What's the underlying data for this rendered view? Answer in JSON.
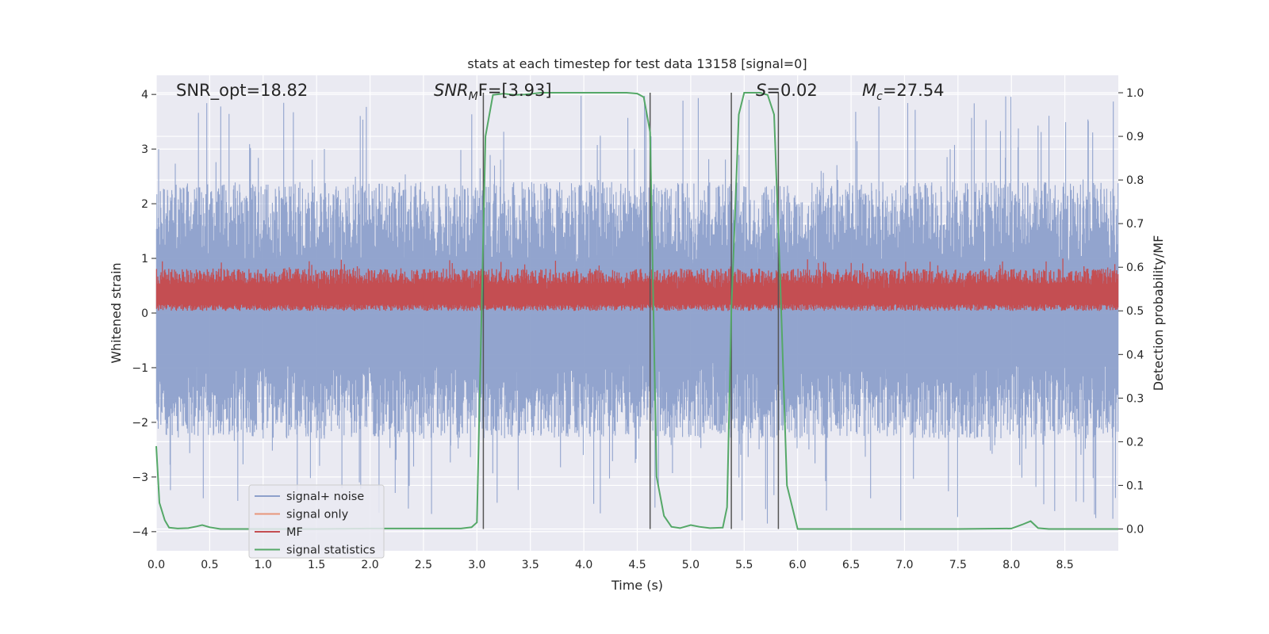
{
  "chart_data": {
    "type": "line",
    "title": "stats at each timestep for test data 13158 [signal=0]",
    "xlabel": "Time (s)",
    "ylabel": "Whitened strain",
    "y2label": "Detection probability/MF",
    "xlim": [
      0,
      9.0
    ],
    "ylim": [
      -4.35,
      4.35
    ],
    "y2lim": [
      -0.05,
      1.04
    ],
    "xticks": [
      0.0,
      0.5,
      1.0,
      1.5,
      2.0,
      2.5,
      3.0,
      3.5,
      4.0,
      4.5,
      5.0,
      5.5,
      6.0,
      6.5,
      7.0,
      7.5,
      8.0,
      8.5
    ],
    "xtick_labels": [
      "0.0",
      "0.5",
      "1.0",
      "1.5",
      "2.0",
      "2.5",
      "3.0",
      "3.5",
      "4.0",
      "4.5",
      "5.0",
      "5.5",
      "6.0",
      "6.5",
      "7.0",
      "7.5",
      "8.0",
      "8.5"
    ],
    "yticks": [
      4,
      3,
      2,
      1,
      0,
      -1,
      -2,
      -3,
      -4
    ],
    "ytick_labels": [
      "4",
      "3",
      "2",
      "1",
      "0",
      "−1",
      "−2",
      "−3",
      "−4"
    ],
    "y2ticks": [
      1.0,
      0.9,
      0.8,
      0.7,
      0.6,
      0.5,
      0.4,
      0.3,
      0.2,
      0.1,
      0.0
    ],
    "y2tick_labels": [
      "1.0",
      "0.9",
      "0.8",
      "0.7",
      "0.6",
      "0.5",
      "0.4",
      "0.3",
      "0.2",
      "0.1",
      "0.0"
    ],
    "grid": true,
    "annotations": {
      "snr_opt": "SNR_opt=18.82",
      "snr_mf_base": "SNR",
      "snr_mf_sub": "M",
      "snr_mf_rest": "F=[3.93]",
      "s_var": "S",
      "s_rest": "=0.02",
      "mc_var": "M",
      "mc_sub": "c",
      "mc_rest": "=27.54"
    },
    "vlines_x": [
      3.06,
      4.62,
      5.38,
      5.82
    ],
    "series": [
      {
        "name": "signal+ noise",
        "color": "#8da0cb",
        "description": "noisy whitened strain, roughly -3.8 to 4.0, centered near 0",
        "envelope": {
          "mean": 0.0,
          "typical_max": 2.4,
          "typical_min": -2.3,
          "peak_max": 4.0,
          "peak_min": -3.9
        }
      },
      {
        "name": "signal only",
        "color": "#e8967a",
        "values": []
      },
      {
        "name": "MF",
        "color": "#c44e52",
        "description": "matched filter output on right axis, fluctuating between ~0.5 and ~0.62",
        "envelope": {
          "mean_y2": 0.55,
          "min_y2": 0.5,
          "max_y2": 0.62
        }
      },
      {
        "name": "signal statistics",
        "color": "#55a868",
        "x": [
          0.0,
          0.03,
          0.08,
          0.12,
          0.2,
          0.3,
          0.38,
          0.43,
          0.5,
          0.6,
          1.0,
          1.5,
          2.0,
          2.5,
          2.85,
          2.95,
          3.0,
          3.03,
          3.08,
          3.15,
          3.25,
          3.35,
          3.45,
          3.6,
          4.0,
          4.4,
          4.5,
          4.56,
          4.62,
          4.68,
          4.75,
          4.82,
          4.9,
          5.0,
          5.08,
          5.18,
          5.3,
          5.34,
          5.38,
          5.45,
          5.5,
          5.55,
          5.65,
          5.72,
          5.78,
          5.84,
          5.9,
          6.0,
          6.5,
          7.0,
          7.5,
          8.0,
          8.1,
          8.18,
          8.25,
          8.35,
          9.0
        ],
        "values": [
          0.19,
          0.06,
          0.02,
          0.003,
          0.001,
          0.002,
          0.006,
          0.009,
          0.004,
          0.0,
          0.0,
          0.0,
          0.001,
          0.001,
          0.001,
          0.004,
          0.015,
          0.35,
          0.9,
          0.995,
          0.998,
          0.995,
          0.996,
          1.0,
          1.0,
          1.0,
          0.998,
          0.99,
          0.91,
          0.12,
          0.03,
          0.005,
          0.002,
          0.009,
          0.005,
          0.002,
          0.003,
          0.05,
          0.5,
          0.95,
          1.0,
          1.0,
          1.0,
          0.995,
          0.95,
          0.55,
          0.1,
          0.0,
          0.0,
          0.0,
          0.0,
          0.001,
          0.01,
          0.018,
          0.002,
          0.0,
          0.0
        ]
      }
    ],
    "legend": {
      "position": "lower-left",
      "entries": [
        {
          "label": "signal+ noise",
          "color": "#8da0cb"
        },
        {
          "label": "signal only",
          "color": "#e8967a"
        },
        {
          "label": "MF",
          "color": "#c44e52"
        },
        {
          "label": "signal statistics",
          "color": "#55a868"
        }
      ]
    }
  }
}
